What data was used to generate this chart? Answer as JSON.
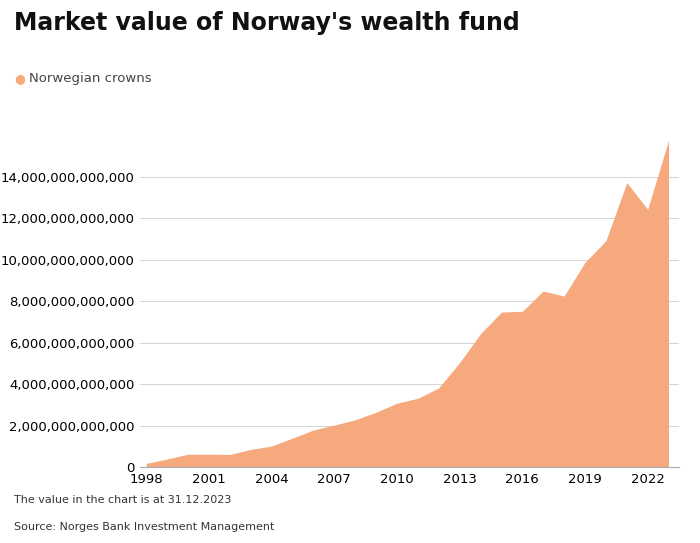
{
  "title": "Market value of Norway's wealth fund",
  "legend_label": "Norwegian crowns",
  "fill_color": "#F5A97C",
  "line_color": "#F5A97C",
  "source_text": "Source: Norges Bank Investment Management",
  "note_text": "The value in the chart is at 31.12.2023",
  "years": [
    1998,
    1999,
    2000,
    2001,
    2002,
    2003,
    2004,
    2005,
    2006,
    2007,
    2008,
    2009,
    2010,
    2011,
    2012,
    2013,
    2014,
    2015,
    2016,
    2017,
    2018,
    2019,
    2020,
    2021,
    2022,
    2023
  ],
  "values": [
    172000000000,
    386000000000,
    613000000000,
    619000000000,
    604000000000,
    845000000000,
    1012000000000,
    1392000000000,
    1782000000000,
    2019000000000,
    2275000000000,
    2640000000000,
    3077000000000,
    3312000000000,
    3816000000000,
    5038000000000,
    6431000000000,
    7471000000000,
    7510000000000,
    8488000000000,
    8244000000000,
    9870000000000,
    10908000000000,
    13716000000000,
    12429000000000,
    15765000000000
  ],
  "ylim": [
    0,
    16500000000000
  ],
  "yticks": [
    0,
    2000000000000,
    4000000000000,
    6000000000000,
    8000000000000,
    10000000000000,
    12000000000000,
    14000000000000
  ],
  "xticks": [
    1998,
    2001,
    2004,
    2007,
    2010,
    2013,
    2016,
    2019,
    2022
  ],
  "background_color": "#ffffff",
  "grid_color": "#cccccc",
  "title_fontsize": 17,
  "label_fontsize": 9.5,
  "note_fontsize": 8,
  "legend_dot_color": "#F5A97C"
}
